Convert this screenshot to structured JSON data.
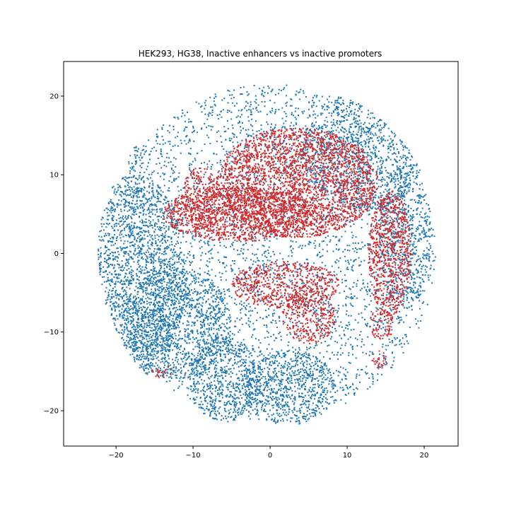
{
  "chart_data": {
    "type": "scatter",
    "title": "HEK293, HG38, Inactive enhancers vs inactive promoters",
    "xlabel": "",
    "ylabel": "",
    "xlim": [
      -26.8,
      24.4
    ],
    "ylim": [
      -24.5,
      24.4
    ],
    "xticks": [
      -20,
      -10,
      0,
      10,
      20
    ],
    "xtick_labels": [
      "−20",
      "−10",
      "0",
      "10",
      "20"
    ],
    "yticks": [
      -20,
      -10,
      0,
      10,
      20
    ],
    "ytick_labels": [
      "−20",
      "−10",
      "0",
      "10",
      "20"
    ],
    "grid": false,
    "series": [
      {
        "color": "#1f77b4",
        "regions": [
          {
            "cx": 0.0,
            "cy": 0.0,
            "rx": 21.5,
            "ry": 21.5,
            "density": 0.6
          },
          {
            "cx": -17.5,
            "cy": -3.0,
            "rx": 6.5,
            "ry": 13.0,
            "density": 1.6
          },
          {
            "cx": -12.0,
            "cy": -9.0,
            "rx": 7.0,
            "ry": 7.0,
            "density": 1.4
          },
          {
            "cx": -6.0,
            "cy": -16.0,
            "rx": 4.5,
            "ry": 5.5,
            "density": 1.6
          },
          {
            "cx": 2.5,
            "cy": -17.0,
            "rx": 6.0,
            "ry": 4.8,
            "density": 1.6
          },
          {
            "cx": 12.0,
            "cy": 13.0,
            "rx": 8.0,
            "ry": 7.5,
            "density": 1.2
          },
          {
            "cx": 17.5,
            "cy": 2.0,
            "rx": 3.5,
            "ry": 9.0,
            "density": 1.2
          },
          {
            "cx": -23.5,
            "cy": -3.0,
            "rx": 1.6,
            "ry": 0.8,
            "density": 1.5
          },
          {
            "cx": -17.5,
            "cy": 12.0,
            "rx": 0.9,
            "ry": 1.6,
            "density": 1.5
          }
        ]
      },
      {
        "color": "#d62728",
        "regions": [
          {
            "cx": 3.5,
            "cy": 9.0,
            "rx": 10.5,
            "ry": 7.0,
            "density": 2.6
          },
          {
            "cx": -4.0,
            "cy": 5.0,
            "rx": 10.0,
            "ry": 3.5,
            "density": 2.4
          },
          {
            "cx": 15.5,
            "cy": 0.0,
            "rx": 2.8,
            "ry": 8.0,
            "density": 2.4
          },
          {
            "cx": 2.0,
            "cy": -4.0,
            "rx": 7.0,
            "ry": 3.0,
            "density": 2.0
          },
          {
            "cx": 5.0,
            "cy": -8.0,
            "rx": 3.5,
            "ry": 3.5,
            "density": 1.8
          },
          {
            "cx": 14.5,
            "cy": -9.0,
            "rx": 1.6,
            "ry": 2.0,
            "density": 1.8
          },
          {
            "cx": 14.2,
            "cy": -13.5,
            "rx": 1.0,
            "ry": 1.2,
            "density": 1.6
          },
          {
            "cx": -14.0,
            "cy": -15.0,
            "rx": 1.5,
            "ry": 0.8,
            "density": 1.2
          },
          {
            "cx": -9.0,
            "cy": 7.0,
            "rx": 2.5,
            "ry": 4.0,
            "density": 1.8
          }
        ]
      }
    ]
  }
}
